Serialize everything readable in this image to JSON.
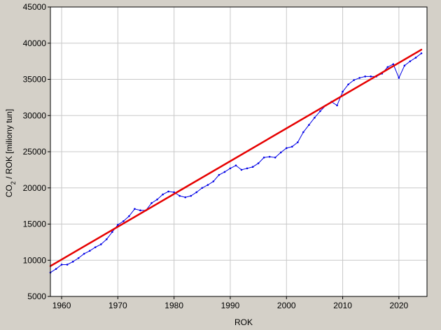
{
  "chart_data": {
    "type": "line",
    "xlabel": "ROK",
    "ylabel": {
      "prefix": "CO",
      "subscript": "2",
      "suffix": " / ROK [miliony tun]"
    },
    "xlim": [
      1958,
      2025
    ],
    "ylim": [
      5000,
      45000
    ],
    "xticks": [
      1960,
      1970,
      1980,
      1990,
      2000,
      2010,
      2020
    ],
    "yticks": [
      5000,
      10000,
      15000,
      20000,
      25000,
      30000,
      35000,
      40000,
      45000
    ],
    "grid": true,
    "colors": {
      "data": "#0000e6",
      "trend": "#e60000",
      "plot_bg": "#ffffff",
      "grid": "#c8c8c8",
      "frame": "#000000",
      "outer_bg": "#d4d0c8"
    },
    "series": [
      {
        "kind": "data",
        "x": [
          1958,
          1959,
          1960,
          1961,
          1962,
          1963,
          1964,
          1965,
          1966,
          1967,
          1968,
          1969,
          1970,
          1971,
          1972,
          1973,
          1974,
          1975,
          1976,
          1977,
          1978,
          1979,
          1980,
          1981,
          1982,
          1983,
          1984,
          1985,
          1986,
          1987,
          1988,
          1989,
          1990,
          1991,
          1992,
          1993,
          1994,
          1995,
          1996,
          1997,
          1998,
          1999,
          2000,
          2001,
          2002,
          2003,
          2004,
          2005,
          2006,
          2007,
          2008,
          2009,
          2010,
          2011,
          2012,
          2013,
          2014,
          2015,
          2016,
          2017,
          2018,
          2019,
          2020,
          2021,
          2022,
          2023,
          2024
        ],
        "y": [
          8300,
          8800,
          9400,
          9400,
          9800,
          10300,
          10900,
          11300,
          11800,
          12200,
          12900,
          13900,
          14900,
          15400,
          16100,
          17100,
          16900,
          16900,
          17900,
          18400,
          19100,
          19500,
          19400,
          18900,
          18700,
          18900,
          19400,
          20000,
          20400,
          20900,
          21800,
          22200,
          22700,
          23100,
          22500,
          22700,
          22900,
          23400,
          24200,
          24300,
          24200,
          24900,
          25500,
          25700,
          26300,
          27700,
          28700,
          29700,
          30600,
          31400,
          31900,
          31400,
          33300,
          34300,
          34900,
          35200,
          35400,
          35400,
          35400,
          35800,
          36700,
          37100,
          35200,
          36900,
          37500,
          38000,
          38600
        ]
      },
      {
        "kind": "trend",
        "x": [
          1958,
          2024
        ],
        "y": [
          9200,
          39100
        ]
      }
    ]
  }
}
